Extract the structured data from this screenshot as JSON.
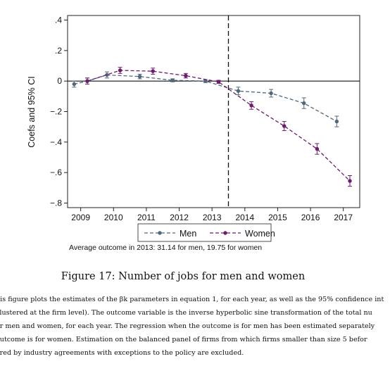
{
  "chart_data": {
    "type": "line",
    "title": "",
    "xlabel": "",
    "ylabel": "Coefs and 95% CI",
    "x": [
      2009,
      2010,
      2011,
      2012,
      2013,
      2014,
      2015,
      2016,
      2017
    ],
    "x_tick_labels": [
      "2009",
      "2010",
      "2011",
      "2012",
      "2013",
      "2014",
      "2015",
      "2016",
      "2017"
    ],
    "y_ticks": [
      0.4,
      0.2,
      0,
      -0.2,
      -0.4,
      -0.6,
      -0.8
    ],
    "y_tick_labels": [
      ".4",
      ".2",
      "0",
      "−.2",
      "−.4",
      "−.6",
      "−.8"
    ],
    "ylim": [
      -0.83,
      0.43
    ],
    "grid": false,
    "reference_line_y": 0,
    "event_line_x": 2013.5,
    "legend_position": "bottom",
    "series": [
      {
        "name": "Men",
        "color": "#51677a",
        "x": [
          2008.8,
          2009.2,
          2009.8,
          2010.8,
          2011.8,
          2012.8,
          2013.8,
          2014.8,
          2015.8,
          2016.8
        ],
        "values": [
          -0.02,
          0.0,
          0.04,
          0.03,
          0.005,
          0.0,
          -0.065,
          -0.08,
          -0.145,
          -0.265
        ],
        "ci_low": [
          -0.04,
          -0.02,
          0.02,
          0.015,
          -0.005,
          -0.01,
          -0.09,
          -0.105,
          -0.18,
          -0.3
        ],
        "ci_high": [
          0.0,
          0.02,
          0.06,
          0.045,
          0.015,
          0.01,
          -0.04,
          -0.055,
          -0.11,
          -0.23
        ]
      },
      {
        "name": "Women",
        "color": "#6e1a6e",
        "x": [
          2009.2,
          2010.2,
          2011.2,
          2012.2,
          2013.2,
          2014.2,
          2015.2,
          2016.2,
          2017.2
        ],
        "values": [
          0.0,
          0.07,
          0.065,
          0.035,
          -0.005,
          -0.16,
          -0.295,
          -0.445,
          -0.655
        ],
        "ci_low": [
          -0.02,
          0.05,
          0.045,
          0.02,
          -0.015,
          -0.185,
          -0.325,
          -0.48,
          -0.69
        ],
        "ci_high": [
          0.02,
          0.09,
          0.085,
          0.05,
          0.005,
          -0.135,
          -0.265,
          -0.41,
          -0.62
        ]
      }
    ]
  },
  "note": "Average outcome in 2013: 31.14 for men, 19.75 for women",
  "caption": "Figure 17: Number of jobs for men and women",
  "description": [
    "his figure plots the estimates of the βk parameters in equation 1, for each year, as well as the 95% confidence int",
    "clustered at the firm level). The outcome variable is the inverse hyperbolic sine transformation of the total nu",
    "or men and women, for each year. The regression when the outcome is for men has been estimated separately",
    "outcome is for women. Estimation on the balanced panel of firms from which firms smaller than size 5 befor",
    "ered by industry agreements with exceptions to the policy are excluded."
  ]
}
